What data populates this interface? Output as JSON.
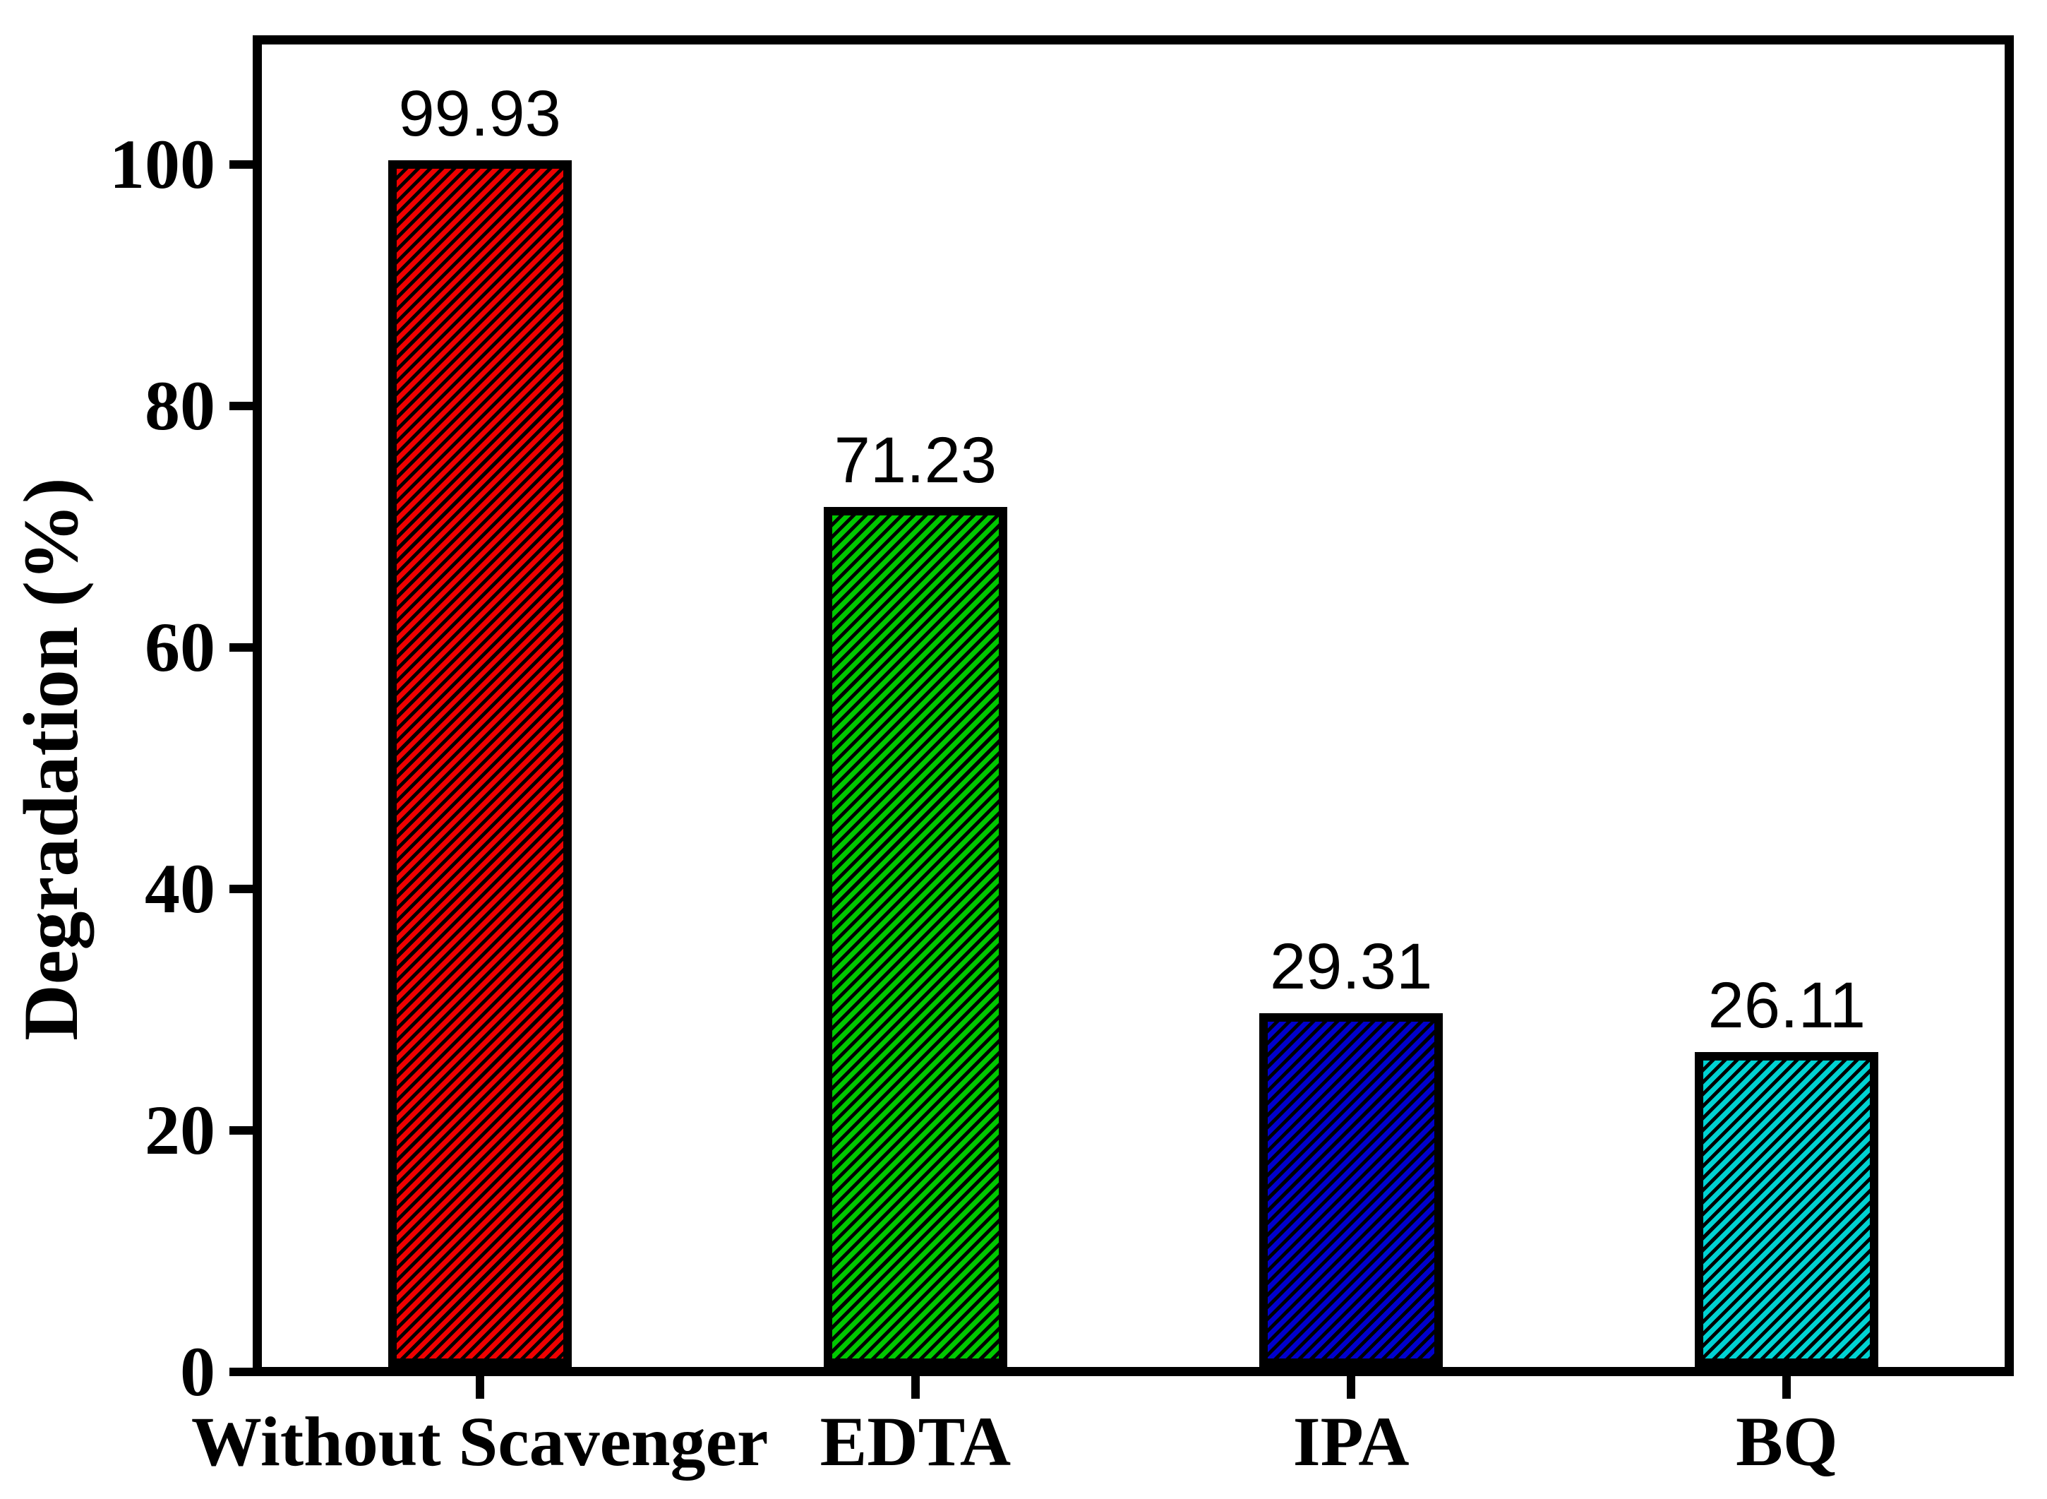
{
  "chart_data": {
    "type": "bar",
    "title": "",
    "ylabel": "Degradation (%)",
    "xlabel": "",
    "categories": [
      "Without Scavenger",
      "EDTA",
      "IPA",
      "BQ"
    ],
    "values": [
      99.93,
      71.23,
      29.31,
      26.11
    ],
    "bar_value_labels": [
      "99.93",
      "71.23",
      "29.31",
      "26.11"
    ],
    "bar_fill_colors": [
      "#ee0000",
      "#00c800",
      "#0000cc",
      "#00d2d2"
    ],
    "bar_edge_color": "#000000",
    "hatch": {
      "pattern": "forward-diagonal",
      "color": "#000000"
    },
    "yticks": [
      0,
      20,
      40,
      60,
      80,
      100
    ],
    "ytick_labels": [
      "0",
      "20",
      "40",
      "60",
      "80",
      "100"
    ],
    "ylim": [
      0,
      110
    ],
    "grid": false,
    "legend": "none",
    "background_color": "#ffffff",
    "axis_color": "#000000",
    "text_color": "#000000"
  }
}
